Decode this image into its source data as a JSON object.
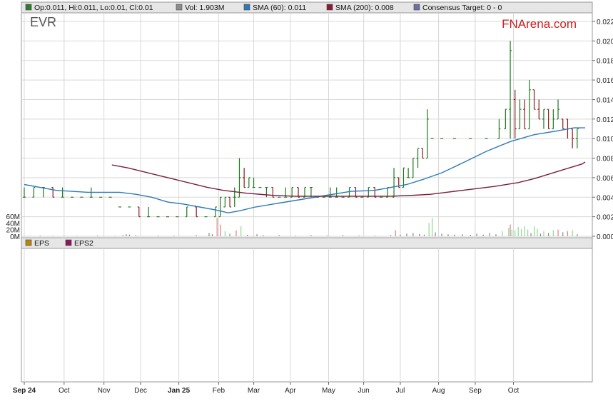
{
  "ticker": "EVR",
  "brand": "FNArena.com",
  "legend_main": [
    {
      "label": "Op:0.011, Hi:0.011, Lo:0.01, Cl:0.01",
      "color": "#2e7d2e"
    },
    {
      "label": "Vol: 1.903M",
      "color": "#8c8c8c"
    },
    {
      "label": "SMA (60): 0.011",
      "color": "#2b7bb9"
    },
    {
      "label": "SMA (200): 0.008",
      "color": "#8b1a3a"
    },
    {
      "label": "Consensus Target: 0 - 0",
      "color": "#6f6fa8"
    }
  ],
  "legend_eps": [
    {
      "label": "EPS",
      "color": "#b8860b"
    },
    {
      "label": "EPS2",
      "color": "#8b1a5a"
    }
  ],
  "colors": {
    "up": "#1f7a1f",
    "down": "#8b1a1a",
    "vol_up": "#8fd88f",
    "vol_down": "#e08080",
    "vol": "#888888",
    "sma60": "#2b7bb9",
    "sma200": "#7a1f3a",
    "grid": "#d8d8d8"
  },
  "chart_data": {
    "type": "line",
    "series": [
      {
        "name": "SMA (60)",
        "values": [
          [
            0,
            0.0053
          ],
          [
            10,
            0.005
          ],
          [
            20,
            0.0047
          ],
          [
            30,
            0.0046
          ],
          [
            40,
            0.0045
          ],
          [
            50,
            0.0045
          ],
          [
            60,
            0.0045
          ],
          [
            70,
            0.0043
          ],
          [
            80,
            0.004
          ],
          [
            90,
            0.0035
          ],
          [
            100,
            0.0033
          ],
          [
            110,
            0.003
          ],
          [
            120,
            0.0027
          ],
          [
            128,
            0.0024
          ],
          [
            135,
            0.0026
          ],
          [
            145,
            0.003
          ],
          [
            160,
            0.0034
          ],
          [
            175,
            0.0038
          ],
          [
            190,
            0.0042
          ],
          [
            205,
            0.0046
          ],
          [
            220,
            0.0047
          ],
          [
            230,
            0.005
          ],
          [
            240,
            0.0053
          ],
          [
            250,
            0.0058
          ],
          [
            262,
            0.0065
          ],
          [
            275,
            0.0075
          ],
          [
            290,
            0.0087
          ],
          [
            305,
            0.0097
          ],
          [
            320,
            0.0104
          ],
          [
            335,
            0.0108
          ],
          [
            345,
            0.0111
          ],
          [
            352,
            0.0111
          ]
        ]
      },
      {
        "name": "SMA (200)",
        "values": [
          [
            55,
            0.0073
          ],
          [
            65,
            0.007
          ],
          [
            75,
            0.0066
          ],
          [
            85,
            0.0062
          ],
          [
            95,
            0.0058
          ],
          [
            105,
            0.0054
          ],
          [
            115,
            0.005
          ],
          [
            125,
            0.0047
          ],
          [
            140,
            0.0044
          ],
          [
            155,
            0.0042
          ],
          [
            170,
            0.0041
          ],
          [
            190,
            0.0041
          ],
          [
            210,
            0.0041
          ],
          [
            230,
            0.0041
          ],
          [
            245,
            0.0042
          ],
          [
            255,
            0.0043
          ],
          [
            265,
            0.0045
          ],
          [
            280,
            0.0048
          ],
          [
            295,
            0.0051
          ],
          [
            310,
            0.0055
          ],
          [
            320,
            0.0059
          ],
          [
            330,
            0.0064
          ],
          [
            340,
            0.0069
          ],
          [
            350,
            0.0074
          ],
          [
            352,
            0.0076
          ]
        ]
      }
    ],
    "ohlc": [
      [
        0,
        0.004,
        0.005,
        0.004,
        0.004
      ],
      [
        6,
        0.004,
        0.005,
        0.004,
        0.005
      ],
      [
        12,
        0.005,
        0.005,
        0.004,
        0.005
      ],
      [
        18,
        0.005,
        0.005,
        0.004,
        0.004
      ],
      [
        24,
        0.004,
        0.005,
        0.004,
        0.004
      ],
      [
        30,
        0.004,
        0.004,
        0.004,
        0.004
      ],
      [
        36,
        0.004,
        0.004,
        0.004,
        0.004
      ],
      [
        42,
        0.004,
        0.005,
        0.004,
        0.004
      ],
      [
        48,
        0.004,
        0.004,
        0.004,
        0.004
      ],
      [
        54,
        0.004,
        0.004,
        0.004,
        0.004
      ],
      [
        60,
        0.003,
        0.003,
        0.003,
        0.003
      ],
      [
        66,
        0.003,
        0.003,
        0.003,
        0.003
      ],
      [
        72,
        0.003,
        0.003,
        0.002,
        0.002
      ],
      [
        78,
        0.002,
        0.003,
        0.002,
        0.002
      ],
      [
        84,
        0.002,
        0.002,
        0.002,
        0.002
      ],
      [
        90,
        0.002,
        0.002,
        0.002,
        0.002
      ],
      [
        96,
        0.002,
        0.002,
        0.002,
        0.002
      ],
      [
        102,
        0.002,
        0.003,
        0.002,
        0.003
      ],
      [
        108,
        0.003,
        0.003,
        0.002,
        0.002
      ],
      [
        114,
        0.002,
        0.002,
        0.002,
        0.002
      ],
      [
        120,
        0.002,
        0.003,
        0.002,
        0.003
      ],
      [
        123,
        0.002,
        0.004,
        0.002,
        0.004
      ],
      [
        126,
        0.003,
        0.004,
        0.003,
        0.004
      ],
      [
        129,
        0.004,
        0.004,
        0.003,
        0.003
      ],
      [
        132,
        0.004,
        0.005,
        0.003,
        0.004
      ],
      [
        135,
        0.004,
        0.008,
        0.004,
        0.006
      ],
      [
        138,
        0.006,
        0.007,
        0.005,
        0.005
      ],
      [
        141,
        0.005,
        0.006,
        0.005,
        0.006
      ],
      [
        144,
        0.005,
        0.006,
        0.005,
        0.005
      ],
      [
        148,
        0.005,
        0.005,
        0.005,
        0.005
      ],
      [
        152,
        0.005,
        0.005,
        0.004,
        0.005
      ],
      [
        156,
        0.005,
        0.005,
        0.004,
        0.004
      ],
      [
        160,
        0.004,
        0.004,
        0.004,
        0.004
      ],
      [
        164,
        0.004,
        0.005,
        0.004,
        0.004
      ],
      [
        168,
        0.004,
        0.005,
        0.004,
        0.005
      ],
      [
        172,
        0.005,
        0.005,
        0.004,
        0.004
      ],
      [
        176,
        0.004,
        0.005,
        0.004,
        0.005
      ],
      [
        180,
        0.005,
        0.005,
        0.004,
        0.005
      ],
      [
        184,
        0.004,
        0.004,
        0.004,
        0.004
      ],
      [
        188,
        0.004,
        0.004,
        0.004,
        0.004
      ],
      [
        192,
        0.004,
        0.005,
        0.004,
        0.004
      ],
      [
        196,
        0.004,
        0.005,
        0.004,
        0.004
      ],
      [
        200,
        0.004,
        0.004,
        0.004,
        0.004
      ],
      [
        204,
        0.004,
        0.005,
        0.004,
        0.005
      ],
      [
        208,
        0.005,
        0.005,
        0.004,
        0.004
      ],
      [
        212,
        0.004,
        0.004,
        0.004,
        0.004
      ],
      [
        216,
        0.004,
        0.005,
        0.004,
        0.005
      ],
      [
        220,
        0.005,
        0.005,
        0.004,
        0.004
      ],
      [
        224,
        0.004,
        0.004,
        0.004,
        0.004
      ],
      [
        228,
        0.004,
        0.005,
        0.004,
        0.005
      ],
      [
        232,
        0.004,
        0.007,
        0.004,
        0.006
      ],
      [
        235,
        0.006,
        0.006,
        0.005,
        0.005
      ],
      [
        238,
        0.005,
        0.007,
        0.005,
        0.007
      ],
      [
        241,
        0.006,
        0.007,
        0.006,
        0.006
      ],
      [
        244,
        0.006,
        0.008,
        0.006,
        0.008
      ],
      [
        247,
        0.008,
        0.009,
        0.007,
        0.009
      ],
      [
        250,
        0.009,
        0.009,
        0.008,
        0.008
      ],
      [
        253,
        0.008,
        0.013,
        0.008,
        0.012
      ],
      [
        256,
        0.01,
        0.01,
        0.01,
        0.01
      ],
      [
        262,
        0.01,
        0.01,
        0.01,
        0.01
      ],
      [
        270,
        0.01,
        0.01,
        0.01,
        0.01
      ],
      [
        280,
        0.01,
        0.01,
        0.01,
        0.01
      ],
      [
        290,
        0.01,
        0.01,
        0.01,
        0.01
      ],
      [
        298,
        0.01,
        0.012,
        0.01,
        0.011
      ],
      [
        302,
        0.011,
        0.013,
        0.011,
        0.013
      ],
      [
        305,
        0.013,
        0.02,
        0.01,
        0.019
      ],
      [
        308,
        0.014,
        0.015,
        0.01,
        0.011
      ],
      [
        311,
        0.011,
        0.014,
        0.011,
        0.013
      ],
      [
        314,
        0.013,
        0.014,
        0.011,
        0.011
      ],
      [
        317,
        0.011,
        0.016,
        0.011,
        0.015
      ],
      [
        320,
        0.015,
        0.015,
        0.013,
        0.013
      ],
      [
        323,
        0.013,
        0.014,
        0.012,
        0.012
      ],
      [
        326,
        0.012,
        0.013,
        0.011,
        0.013
      ],
      [
        329,
        0.013,
        0.013,
        0.011,
        0.011
      ],
      [
        332,
        0.011,
        0.013,
        0.011,
        0.012
      ],
      [
        335,
        0.012,
        0.014,
        0.012,
        0.013
      ],
      [
        338,
        0.012,
        0.012,
        0.011,
        0.011
      ],
      [
        341,
        0.012,
        0.012,
        0.01,
        0.011
      ],
      [
        344,
        0.011,
        0.011,
        0.009,
        0.01
      ],
      [
        347,
        0.01,
        0.011,
        0.009,
        0.011
      ]
    ],
    "volume": [
      [
        3,
        1
      ],
      [
        10,
        2
      ],
      [
        18,
        1
      ],
      [
        25,
        1
      ],
      [
        33,
        1
      ],
      [
        46,
        2
      ],
      [
        57,
        1
      ],
      [
        62,
        3
      ],
      [
        64,
        6
      ],
      [
        66,
        5
      ],
      [
        70,
        3
      ],
      [
        84,
        2
      ],
      [
        94,
        2
      ],
      [
        108,
        3
      ],
      [
        116,
        10
      ],
      [
        118,
        6
      ],
      [
        121,
        55
      ],
      [
        123,
        35
      ],
      [
        126,
        15
      ],
      [
        129,
        8
      ],
      [
        133,
        18
      ],
      [
        136,
        30
      ],
      [
        140,
        4
      ],
      [
        146,
        6
      ],
      [
        150,
        3
      ],
      [
        160,
        3
      ],
      [
        170,
        2
      ],
      [
        180,
        3
      ],
      [
        190,
        2
      ],
      [
        200,
        3
      ],
      [
        210,
        2
      ],
      [
        220,
        2
      ],
      [
        230,
        3
      ],
      [
        233,
        18
      ],
      [
        236,
        5
      ],
      [
        240,
        8
      ],
      [
        244,
        10
      ],
      [
        248,
        7
      ],
      [
        251,
        5
      ],
      [
        254,
        40
      ],
      [
        256,
        55
      ],
      [
        258,
        12
      ],
      [
        262,
        8
      ],
      [
        266,
        6
      ],
      [
        270,
        5
      ],
      [
        275,
        6
      ],
      [
        280,
        4
      ],
      [
        284,
        8
      ],
      [
        288,
        5
      ],
      [
        292,
        10
      ],
      [
        296,
        6
      ],
      [
        300,
        15
      ],
      [
        304,
        25
      ],
      [
        305,
        35
      ],
      [
        306,
        20
      ],
      [
        308,
        18
      ],
      [
        310,
        28
      ],
      [
        312,
        22
      ],
      [
        314,
        30
      ],
      [
        316,
        20
      ],
      [
        318,
        10
      ],
      [
        320,
        30
      ],
      [
        322,
        22
      ],
      [
        324,
        8
      ],
      [
        326,
        15
      ],
      [
        329,
        10
      ],
      [
        332,
        18
      ],
      [
        335,
        20
      ],
      [
        338,
        12
      ],
      [
        341,
        15
      ],
      [
        344,
        18
      ],
      [
        347,
        6
      ]
    ],
    "x_labels": [
      {
        "d": 0,
        "label": "Sep 24",
        "bold": true
      },
      {
        "d": 25,
        "label": "Oct",
        "bold": false
      },
      {
        "d": 50,
        "label": "Nov",
        "bold": false
      },
      {
        "d": 73,
        "label": "Dec",
        "bold": false
      },
      {
        "d": 97,
        "label": "Jan 25",
        "bold": true
      },
      {
        "d": 122,
        "label": "Feb",
        "bold": false
      },
      {
        "d": 144,
        "label": "Mar",
        "bold": false
      },
      {
        "d": 167,
        "label": "Apr",
        "bold": false
      },
      {
        "d": 191,
        "label": "May",
        "bold": false
      },
      {
        "d": 213,
        "label": "Jun",
        "bold": false
      },
      {
        "d": 236,
        "label": "Jul",
        "bold": false
      },
      {
        "d": 260,
        "label": "Aug",
        "bold": false
      },
      {
        "d": 283,
        "label": "Sep",
        "bold": false
      },
      {
        "d": 307,
        "label": "Oct",
        "bold": false
      }
    ],
    "y_ticks": [
      "0.000",
      "0.002",
      "0.004",
      "0.006",
      "0.008",
      "0.010",
      "0.012",
      "0.014",
      "0.016",
      "0.018",
      "0.020",
      "0.022"
    ],
    "vol_ticks": [
      "0M",
      "20M",
      "40M",
      "60M"
    ],
    "ylim": [
      0,
      0.022
    ],
    "grid": true
  }
}
